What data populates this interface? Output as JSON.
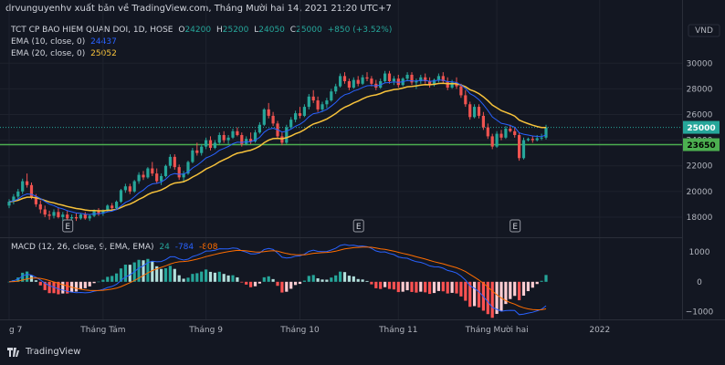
{
  "header": {
    "text": "drvunguyenhv xuất bản về TradingView.com, Tháng Mười hai 14, 2021 21:20 UTC+7"
  },
  "legend": {
    "title": "TCT CP BAO HIEM QUAN DOI, 1D, HOSE",
    "o_label": "O",
    "o_value": "24200",
    "h_label": "H",
    "h_value": "25200",
    "l_label": "L",
    "l_value": "24050",
    "c_label": "C",
    "c_value": "25000",
    "change": "+850 (+3.52%)",
    "ema10_label": "EMA (10, close, 0)",
    "ema10_value": "24437",
    "ema20_label": "EMA (20, close, 0)",
    "ema20_value": "25052"
  },
  "macd_legend": {
    "label": "MACD (12, 26, close, 9, EMA, EMA)",
    "hist_value": "24",
    "macd_value": "-784",
    "signal_value": "-808"
  },
  "footer": {
    "brand": "TradingView",
    "logo_icon": "tradingview-logo-icon"
  },
  "colors": {
    "up": "#26a69a",
    "down": "#ef5350",
    "ema10": "#2962ff",
    "ema20": "#f7c23b",
    "support": "#4caf50",
    "macd": "#2962ff",
    "signal": "#ff6d00",
    "hist_up_strong": "#26a69a",
    "hist_up_weak": "#b2dfdb",
    "hist_down_strong": "#ff5252",
    "hist_down_weak": "#ffcdd2"
  },
  "chart_data": [
    {
      "type": "candlestick",
      "currency": "VND",
      "y_ticks": [
        18000,
        20000,
        22000,
        24000,
        26000,
        28000,
        30000
      ],
      "ylim": [
        17000,
        31800
      ],
      "x_ticks": [
        {
          "day": 0,
          "label": "g 7"
        },
        {
          "day": 21,
          "label": "Tháng Tám"
        },
        {
          "day": 44,
          "label": "Tháng 9"
        },
        {
          "day": 65,
          "label": "Tháng 10"
        },
        {
          "day": 87,
          "label": "Tháng 11"
        },
        {
          "day": 109,
          "label": "Tháng Mười hai"
        },
        {
          "day": 132,
          "label": "2022"
        }
      ],
      "x_range": [
        0,
        150
      ],
      "last_price": 25000,
      "support_level": 23650,
      "events": [
        {
          "day": 13,
          "label": "E"
        },
        {
          "day": 78,
          "label": "E"
        },
        {
          "day": 113,
          "label": "E"
        }
      ],
      "candles": [
        [
          0,
          18900,
          19400,
          18700,
          19200
        ],
        [
          1,
          19200,
          19800,
          19000,
          19600
        ],
        [
          2,
          19600,
          20200,
          19400,
          20000
        ],
        [
          3,
          20000,
          21000,
          19800,
          20800
        ],
        [
          4,
          20800,
          21400,
          20300,
          20500
        ],
        [
          5,
          20500,
          20700,
          19400,
          19600
        ],
        [
          6,
          19600,
          19800,
          18800,
          19000
        ],
        [
          7,
          19000,
          19300,
          18300,
          18600
        ],
        [
          8,
          18600,
          18900,
          18000,
          18200
        ],
        [
          9,
          18200,
          18500,
          17800,
          18100
        ],
        [
          10,
          18100,
          18600,
          17900,
          18400
        ],
        [
          11,
          18400,
          18700,
          17900,
          18000
        ],
        [
          12,
          18000,
          18400,
          17700,
          18200
        ],
        [
          13,
          18200,
          18500,
          17800,
          17900
        ],
        [
          14,
          17900,
          18200,
          17600,
          18000
        ],
        [
          15,
          18000,
          18300,
          17700,
          17900
        ],
        [
          16,
          17900,
          18300,
          17800,
          18200
        ],
        [
          17,
          18200,
          18400,
          17800,
          17900
        ],
        [
          18,
          17900,
          18200,
          17700,
          18100
        ],
        [
          19,
          18100,
          18600,
          18000,
          18500
        ],
        [
          20,
          18500,
          18700,
          18100,
          18300
        ],
        [
          21,
          18300,
          18600,
          18100,
          18500
        ],
        [
          22,
          18500,
          19000,
          18400,
          18900
        ],
        [
          23,
          18900,
          19100,
          18500,
          18700
        ],
        [
          24,
          18700,
          19300,
          18600,
          19200
        ],
        [
          25,
          19200,
          20200,
          19100,
          20100
        ],
        [
          26,
          20100,
          20600,
          19900,
          20400
        ],
        [
          27,
          20400,
          20600,
          19800,
          20000
        ],
        [
          28,
          20000,
          20900,
          19900,
          20800
        ],
        [
          29,
          20800,
          21500,
          20600,
          21300
        ],
        [
          30,
          21300,
          21600,
          20900,
          21100
        ],
        [
          31,
          21100,
          21900,
          21000,
          21800
        ],
        [
          32,
          21800,
          22300,
          21200,
          21400
        ],
        [
          33,
          21400,
          21800,
          20600,
          20800
        ],
        [
          34,
          20800,
          21400,
          20500,
          21200
        ],
        [
          35,
          21200,
          22100,
          21100,
          22000
        ],
        [
          36,
          22000,
          22900,
          21800,
          22700
        ],
        [
          37,
          22700,
          22900,
          21700,
          21900
        ],
        [
          38,
          21900,
          22100,
          20900,
          21100
        ],
        [
          39,
          21100,
          21600,
          20700,
          21400
        ],
        [
          40,
          21400,
          22400,
          21300,
          22300
        ],
        [
          41,
          22300,
          23400,
          22200,
          23200
        ],
        [
          42,
          23200,
          23800,
          22800,
          23000
        ],
        [
          43,
          23000,
          23700,
          22800,
          23500
        ],
        [
          44,
          23500,
          24200,
          23300,
          24000
        ],
        [
          45,
          24000,
          24300,
          23200,
          23400
        ],
        [
          46,
          23400,
          24000,
          23300,
          23800
        ],
        [
          47,
          23800,
          24600,
          23700,
          24400
        ],
        [
          48,
          24400,
          24700,
          23800,
          24000
        ],
        [
          49,
          24000,
          24400,
          23700,
          24200
        ],
        [
          50,
          24200,
          24900,
          24100,
          24700
        ],
        [
          51,
          24700,
          25000,
          24300,
          24400
        ],
        [
          52,
          24400,
          24600,
          23500,
          23700
        ],
        [
          53,
          23700,
          24300,
          23600,
          24100
        ],
        [
          54,
          24100,
          24600,
          23700,
          23900
        ],
        [
          55,
          23900,
          24800,
          23800,
          24600
        ],
        [
          56,
          24600,
          25400,
          24500,
          25200
        ],
        [
          57,
          25200,
          26500,
          25100,
          26400
        ],
        [
          58,
          26400,
          26900,
          25700,
          25900
        ],
        [
          59,
          25900,
          26200,
          25100,
          25300
        ],
        [
          60,
          25300,
          25500,
          24100,
          24300
        ],
        [
          61,
          24300,
          24600,
          23600,
          23800
        ],
        [
          62,
          23800,
          25200,
          23700,
          25000
        ],
        [
          63,
          25000,
          25800,
          24900,
          25600
        ],
        [
          64,
          25600,
          26300,
          25400,
          26100
        ],
        [
          65,
          26100,
          26600,
          25700,
          25900
        ],
        [
          66,
          25900,
          26800,
          25800,
          26600
        ],
        [
          67,
          26600,
          27600,
          26400,
          27400
        ],
        [
          68,
          27400,
          27900,
          26900,
          27100
        ],
        [
          69,
          27100,
          27400,
          26200,
          26400
        ],
        [
          70,
          26400,
          27000,
          26200,
          26800
        ],
        [
          71,
          26800,
          27300,
          26500,
          27100
        ],
        [
          72,
          27100,
          28000,
          27000,
          27800
        ],
        [
          73,
          27800,
          28400,
          27600,
          28200
        ],
        [
          74,
          28200,
          29200,
          28100,
          29000
        ],
        [
          75,
          29000,
          29300,
          28400,
          28600
        ],
        [
          76,
          28600,
          28800,
          27900,
          28100
        ],
        [
          77,
          28100,
          28900,
          28000,
          28700
        ],
        [
          78,
          28700,
          29000,
          28200,
          28400
        ],
        [
          79,
          28400,
          29100,
          28300,
          28900
        ],
        [
          80,
          28900,
          29300,
          28600,
          28800
        ],
        [
          81,
          28800,
          29000,
          28200,
          28400
        ],
        [
          82,
          28400,
          28700,
          27900,
          28100
        ],
        [
          83,
          28100,
          28800,
          28000,
          28600
        ],
        [
          84,
          28600,
          29400,
          28500,
          29200
        ],
        [
          85,
          29200,
          29400,
          28400,
          28600
        ],
        [
          86,
          28600,
          29000,
          28300,
          28800
        ],
        [
          87,
          28800,
          29100,
          28100,
          28300
        ],
        [
          88,
          28300,
          28900,
          28200,
          28800
        ],
        [
          89,
          28800,
          29300,
          28600,
          29100
        ],
        [
          90,
          29100,
          29300,
          28300,
          28500
        ],
        [
          91,
          28500,
          28800,
          28000,
          28600
        ],
        [
          92,
          28600,
          29100,
          28400,
          28900
        ],
        [
          93,
          28900,
          29200,
          28400,
          28600
        ],
        [
          94,
          28600,
          28900,
          28100,
          28300
        ],
        [
          95,
          28300,
          28800,
          28200,
          28700
        ],
        [
          96,
          28700,
          29200,
          28500,
          29000
        ],
        [
          97,
          29000,
          29300,
          28400,
          28600
        ],
        [
          98,
          28600,
          28900,
          27900,
          28100
        ],
        [
          99,
          28100,
          28700,
          28000,
          28500
        ],
        [
          100,
          28500,
          28900,
          28000,
          28200
        ],
        [
          101,
          28200,
          28400,
          27300,
          27500
        ],
        [
          102,
          27500,
          27900,
          26600,
          26800
        ],
        [
          103,
          26800,
          27000,
          25600,
          25800
        ],
        [
          104,
          25800,
          26800,
          25700,
          26600
        ],
        [
          105,
          26600,
          26800,
          25700,
          25900
        ],
        [
          106,
          25900,
          26200,
          24800,
          25000
        ],
        [
          107,
          25000,
          25300,
          24100,
          24300
        ],
        [
          108,
          24300,
          24500,
          23300,
          23500
        ],
        [
          109,
          23500,
          24700,
          23400,
          24500
        ],
        [
          110,
          24500,
          24800,
          24000,
          24200
        ],
        [
          111,
          24200,
          25100,
          24100,
          24900
        ],
        [
          112,
          24900,
          25200,
          24600,
          24700
        ],
        [
          113,
          24700,
          25000,
          24200,
          24400
        ],
        [
          114,
          24400,
          24600,
          22400,
          22600
        ],
        [
          115,
          22600,
          24200,
          22500,
          24000
        ],
        [
          116,
          24000,
          24200,
          23900,
          24100
        ],
        [
          117,
          24100,
          24300,
          23800,
          24000
        ],
        [
          118,
          24000,
          24400,
          23900,
          24150
        ],
        [
          119,
          24150,
          24500,
          24000,
          24200
        ],
        [
          120,
          24200,
          25200,
          24050,
          25000
        ]
      ]
    },
    {
      "type": "macd",
      "y_ticks": [
        1000,
        0,
        -1000
      ],
      "ylim": [
        -1200,
        1250
      ]
    }
  ]
}
